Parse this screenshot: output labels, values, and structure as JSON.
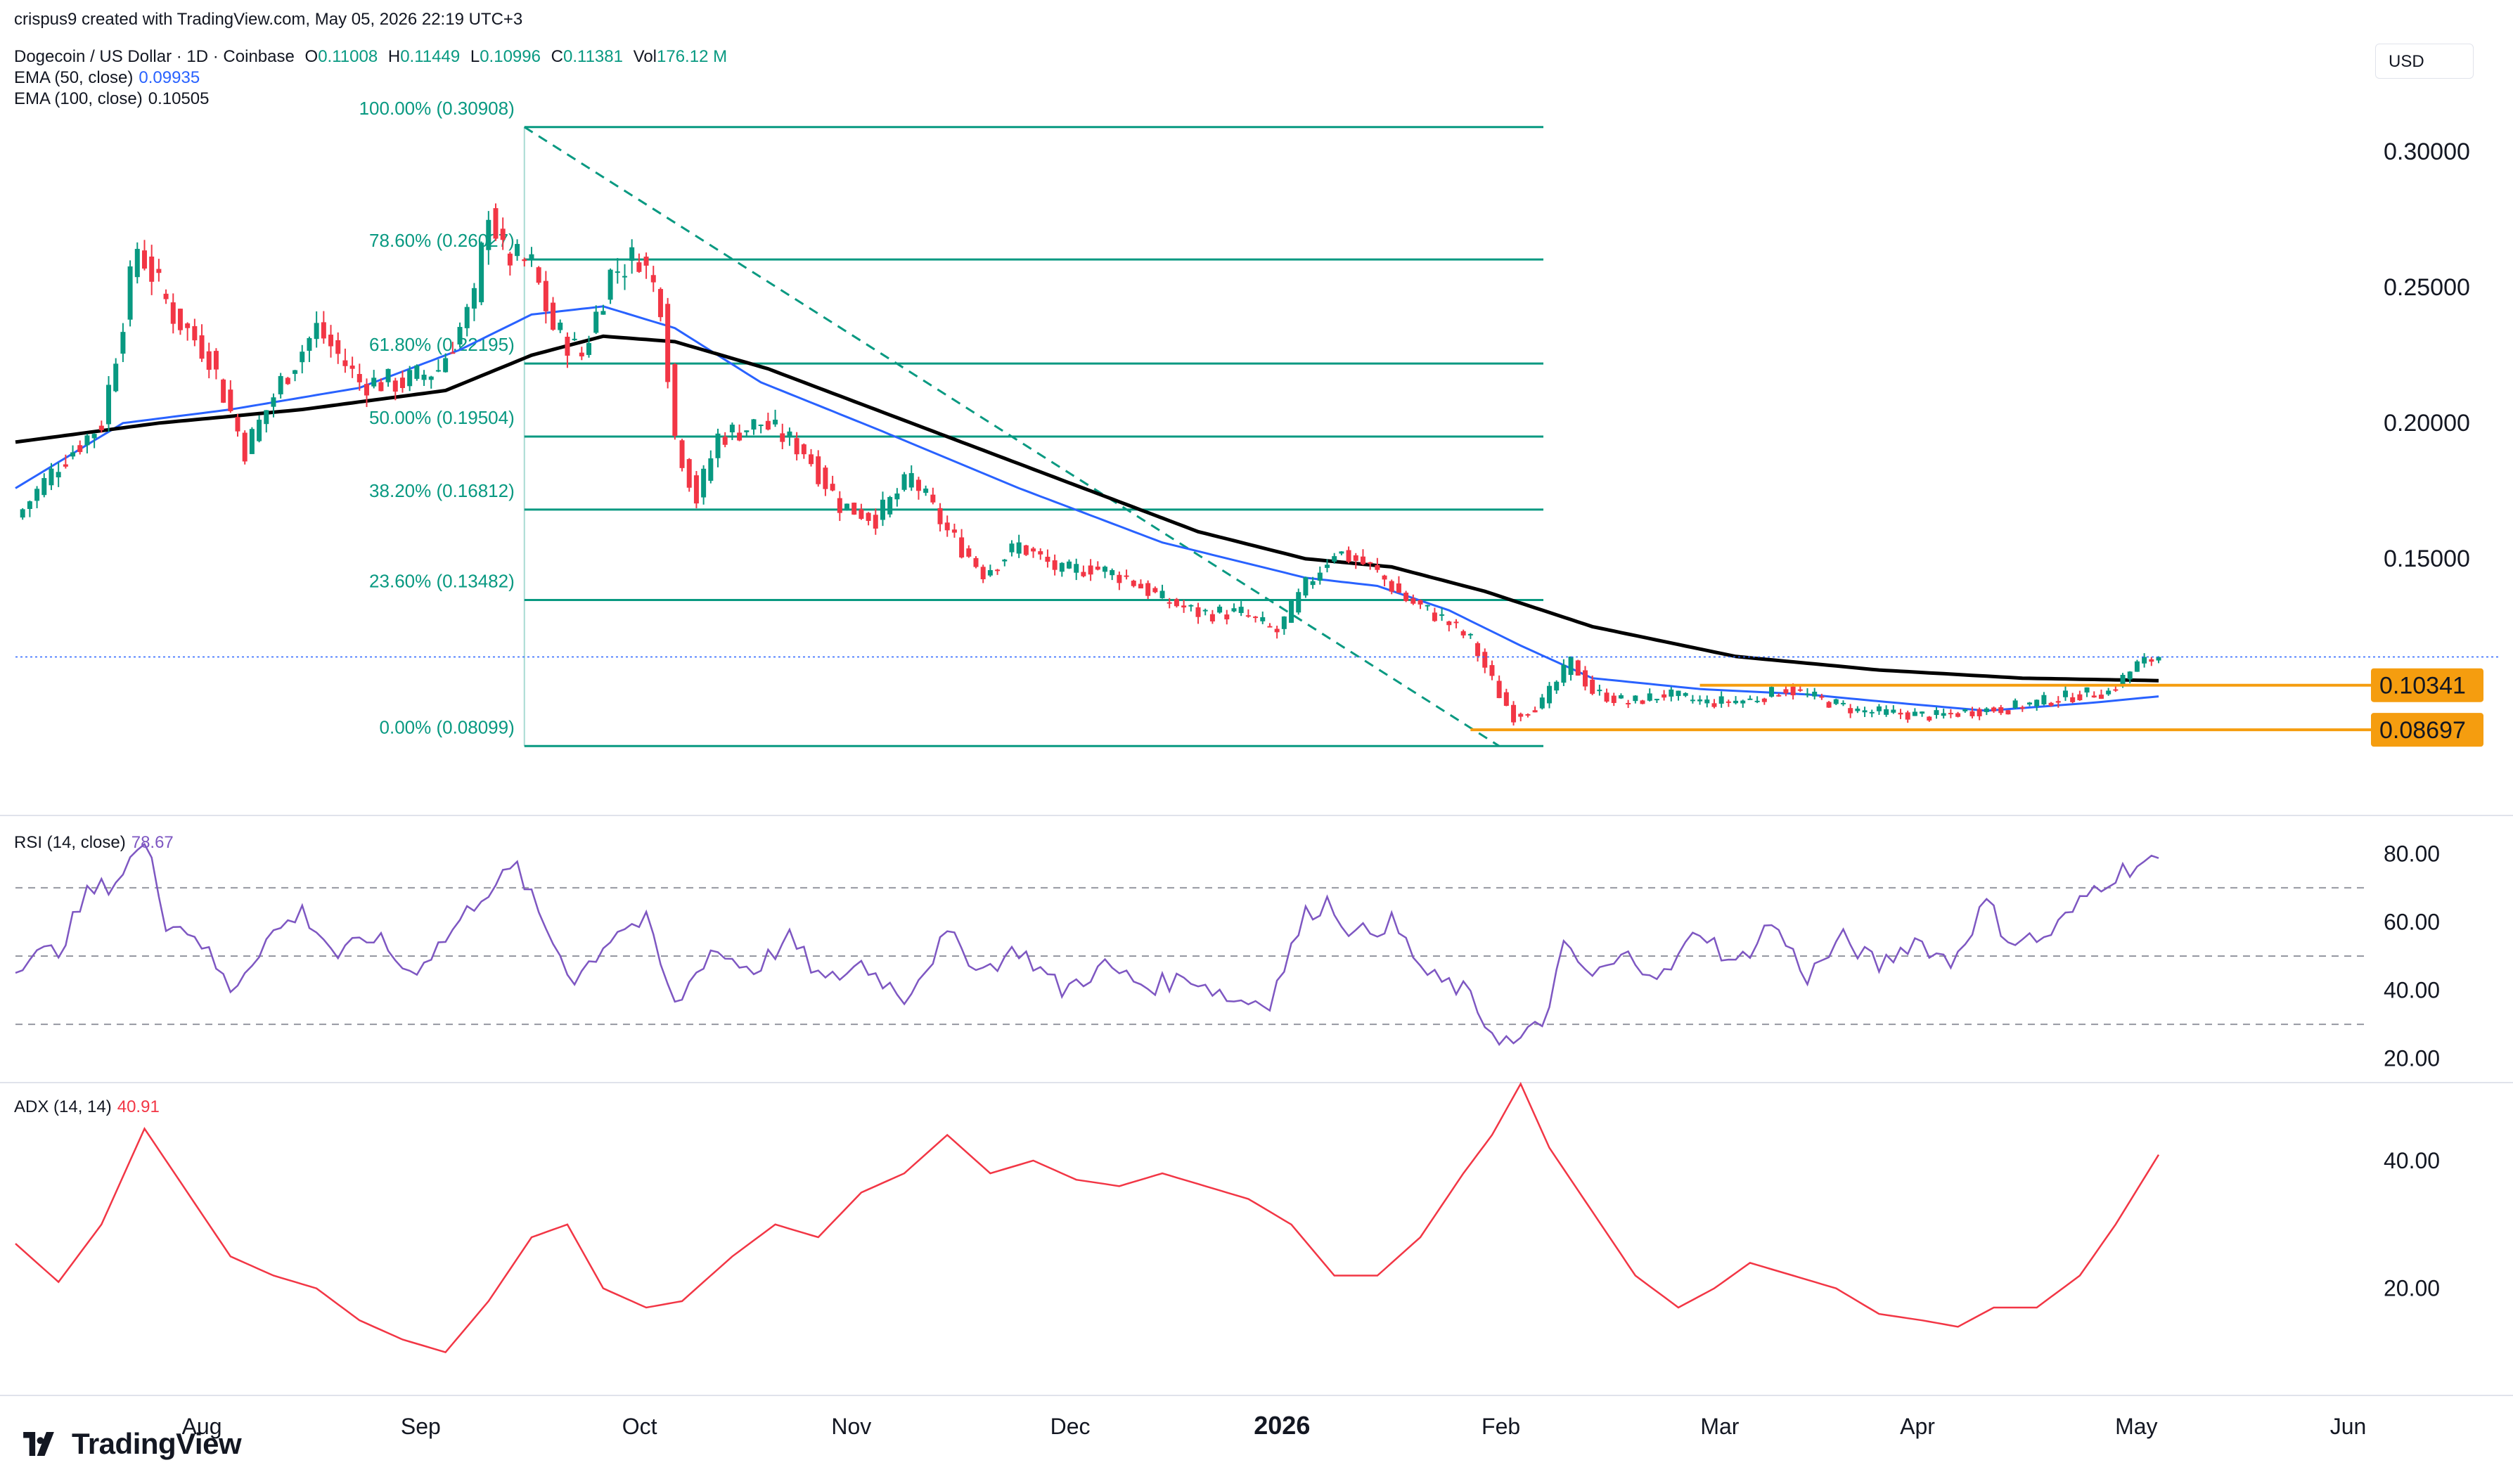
{
  "header": {
    "attribution": "crispus9 created with TradingView.com, May 05, 2026 22:19 UTC+3",
    "currency_button": "USD",
    "brand": "TradingView"
  },
  "legend": {
    "symbol": "Dogecoin / US Dollar · 1D · Coinbase",
    "ohlc": {
      "o_label": "O",
      "o": "0.11008",
      "h_label": "H",
      "h": "0.11449",
      "l_label": "L",
      "l": "0.10996",
      "c_label": "C",
      "c": "0.11381",
      "vol_label": "Vol",
      "vol": "176.12 M"
    },
    "ema50_label": "EMA (50, close)",
    "ema50_value": "0.09935",
    "ema100_label": "EMA (100, close)",
    "ema100_value": "0.10505",
    "rsi_label": "RSI (14, close)",
    "rsi_value": "78.67",
    "adx_label": "ADX (14, 14)",
    "adx_value": "40.91"
  },
  "colors": {
    "up": "#089981",
    "down": "#f23645",
    "ema50": "#2962ff",
    "ema100": "#000000",
    "fib": "#089981",
    "support": "#f59d0f",
    "rsi": "#7e57c2",
    "adx": "#f23645",
    "grid": "#f0f3fa",
    "text": "#131722"
  },
  "chart_data": [
    {
      "type": "candlestick",
      "title": "Dogecoin / US Dollar · 1D · Coinbase",
      "ylabel": "USD",
      "x_ticks": [
        "Aug",
        "Sep",
        "Oct",
        "Nov",
        "Dec",
        "2026",
        "Feb",
        "Mar",
        "Apr",
        "May",
        "Jun"
      ],
      "y_ticks": [
        "0.15000",
        "0.20000",
        "0.25000",
        "0.30000"
      ],
      "ylim": [
        0.058,
        0.33
      ],
      "last_close": 0.11381,
      "price_path": [
        [
          0,
          0.165
        ],
        [
          6,
          0.185
        ],
        [
          12,
          0.2
        ],
        [
          17,
          0.265
        ],
        [
          22,
          0.24
        ],
        [
          27,
          0.225
        ],
        [
          32,
          0.19
        ],
        [
          37,
          0.215
        ],
        [
          42,
          0.235
        ],
        [
          48,
          0.215
        ],
        [
          54,
          0.215
        ],
        [
          59,
          0.22
        ],
        [
          64,
          0.245
        ],
        [
          66,
          0.28
        ],
        [
          68,
          0.262
        ],
        [
          72,
          0.258
        ],
        [
          75,
          0.235
        ],
        [
          79,
          0.225
        ],
        [
          83,
          0.255
        ],
        [
          87,
          0.262
        ],
        [
          90,
          0.245
        ],
        [
          92,
          0.195
        ],
        [
          95,
          0.172
        ],
        [
          98,
          0.195
        ],
        [
          104,
          0.2
        ],
        [
          110,
          0.19
        ],
        [
          115,
          0.17
        ],
        [
          120,
          0.165
        ],
        [
          125,
          0.18
        ],
        [
          130,
          0.16
        ],
        [
          135,
          0.145
        ],
        [
          140,
          0.155
        ],
        [
          146,
          0.145
        ],
        [
          150,
          0.147
        ],
        [
          155,
          0.143
        ],
        [
          160,
          0.135
        ],
        [
          165,
          0.13
        ],
        [
          171,
          0.13
        ],
        [
          176,
          0.123
        ],
        [
          180,
          0.14
        ],
        [
          184,
          0.153
        ],
        [
          189,
          0.147
        ],
        [
          194,
          0.135
        ],
        [
          199,
          0.128
        ],
        [
          203,
          0.12
        ],
        [
          207,
          0.1
        ],
        [
          209,
          0.092
        ],
        [
          213,
          0.097
        ],
        [
          217,
          0.112
        ],
        [
          220,
          0.101
        ],
        [
          225,
          0.097
        ],
        [
          230,
          0.1
        ],
        [
          236,
          0.097
        ],
        [
          242,
          0.098
        ],
        [
          247,
          0.102
        ],
        [
          252,
          0.098
        ],
        [
          257,
          0.094
        ],
        [
          262,
          0.093
        ],
        [
          268,
          0.092
        ],
        [
          273,
          0.094
        ],
        [
          278,
          0.095
        ],
        [
          284,
          0.098
        ],
        [
          288,
          0.1
        ],
        [
          292,
          0.101
        ],
        [
          296,
          0.111
        ],
        [
          299,
          0.1138
        ]
      ],
      "ema50_path": [
        [
          0,
          0.176
        ],
        [
          15,
          0.2
        ],
        [
          30,
          0.205
        ],
        [
          48,
          0.213
        ],
        [
          62,
          0.227
        ],
        [
          72,
          0.24
        ],
        [
          82,
          0.243
        ],
        [
          92,
          0.235
        ],
        [
          104,
          0.215
        ],
        [
          120,
          0.198
        ],
        [
          140,
          0.176
        ],
        [
          160,
          0.156
        ],
        [
          180,
          0.143
        ],
        [
          190,
          0.14
        ],
        [
          200,
          0.131
        ],
        [
          210,
          0.118
        ],
        [
          220,
          0.106
        ],
        [
          235,
          0.102
        ],
        [
          250,
          0.1
        ],
        [
          262,
          0.097
        ],
        [
          275,
          0.094
        ],
        [
          290,
          0.097
        ],
        [
          299,
          0.0993
        ]
      ],
      "ema100_path": [
        [
          0,
          0.193
        ],
        [
          20,
          0.2
        ],
        [
          40,
          0.205
        ],
        [
          60,
          0.212
        ],
        [
          72,
          0.225
        ],
        [
          82,
          0.232
        ],
        [
          92,
          0.23
        ],
        [
          105,
          0.22
        ],
        [
          125,
          0.2
        ],
        [
          145,
          0.18
        ],
        [
          165,
          0.16
        ],
        [
          180,
          0.15
        ],
        [
          192,
          0.147
        ],
        [
          205,
          0.138
        ],
        [
          220,
          0.125
        ],
        [
          240,
          0.114
        ],
        [
          260,
          0.109
        ],
        [
          280,
          0.106
        ],
        [
          299,
          0.1051
        ]
      ],
      "fibonacci": [
        {
          "level": "100.00%",
          "price": 0.30908,
          "label": "100.00% (0.30908)"
        },
        {
          "level": "78.60%",
          "price": 0.26027,
          "label": "78.60% (0.26027)"
        },
        {
          "level": "61.80%",
          "price": 0.22195,
          "label": "61.80% (0.22195)"
        },
        {
          "level": "50.00%",
          "price": 0.19504,
          "label": "50.00% (0.19504)"
        },
        {
          "level": "38.20%",
          "price": 0.16812,
          "label": "38.20% (0.16812)"
        },
        {
          "level": "23.60%",
          "price": 0.13482,
          "label": "23.60% (0.13482)"
        },
        {
          "level": "0.00%",
          "price": 0.08099,
          "label": "0.00% (0.08099)"
        }
      ],
      "fib_trend": {
        "from": [
          71,
          0.30908
        ],
        "to": [
          207,
          0.08099
        ]
      },
      "horizontal_levels": [
        {
          "price": 0.10341,
          "label": "0.10341",
          "from_day": 235
        },
        {
          "price": 0.08697,
          "label": "0.08697",
          "from_day": 203
        }
      ],
      "annotations": [
        "0.10341",
        "0.08697"
      ]
    },
    {
      "type": "line",
      "title": "RSI (14, close)",
      "y_ticks": [
        "20.00",
        "40.00",
        "60.00",
        "80.00"
      ],
      "ylim": [
        15,
        85
      ],
      "bands": [
        30,
        50,
        70
      ],
      "values": [
        [
          0,
          48
        ],
        [
          6,
          52
        ],
        [
          10,
          68
        ],
        [
          14,
          72
        ],
        [
          17,
          81
        ],
        [
          19,
          80
        ],
        [
          21,
          60
        ],
        [
          25,
          57
        ],
        [
          30,
          40
        ],
        [
          35,
          55
        ],
        [
          40,
          63
        ],
        [
          45,
          50
        ],
        [
          50,
          56
        ],
        [
          55,
          45
        ],
        [
          60,
          55
        ],
        [
          65,
          68
        ],
        [
          70,
          76
        ],
        [
          73,
          62
        ],
        [
          78,
          43
        ],
        [
          84,
          58
        ],
        [
          88,
          60
        ],
        [
          92,
          35
        ],
        [
          97,
          52
        ],
        [
          103,
          46
        ],
        [
          108,
          55
        ],
        [
          113,
          42
        ],
        [
          118,
          48
        ],
        [
          124,
          38
        ],
        [
          130,
          56
        ],
        [
          135,
          46
        ],
        [
          140,
          52
        ],
        [
          146,
          40
        ],
        [
          152,
          47
        ],
        [
          158,
          41
        ],
        [
          164,
          44
        ],
        [
          170,
          37
        ],
        [
          175,
          37
        ],
        [
          180,
          62
        ],
        [
          183,
          66
        ],
        [
          187,
          56
        ],
        [
          192,
          60
        ],
        [
          197,
          44
        ],
        [
          202,
          40
        ],
        [
          206,
          28
        ],
        [
          209,
          24
        ],
        [
          213,
          30
        ],
        [
          216,
          52
        ],
        [
          220,
          44
        ],
        [
          225,
          50
        ],
        [
          230,
          44
        ],
        [
          235,
          58
        ],
        [
          240,
          47
        ],
        [
          245,
          60
        ],
        [
          250,
          44
        ],
        [
          255,
          55
        ],
        [
          260,
          47
        ],
        [
          265,
          55
        ],
        [
          270,
          48
        ],
        [
          275,
          66
        ],
        [
          278,
          55
        ],
        [
          283,
          55
        ],
        [
          287,
          63
        ],
        [
          290,
          70
        ],
        [
          293,
          74
        ],
        [
          296,
          77
        ],
        [
          299,
          78.67
        ]
      ]
    },
    {
      "type": "line",
      "title": "ADX (14, 14)",
      "y_ticks": [
        "20.00",
        "40.00"
      ],
      "ylim": [
        6,
        50
      ],
      "values": [
        [
          0,
          27
        ],
        [
          6,
          21
        ],
        [
          12,
          30
        ],
        [
          18,
          45
        ],
        [
          24,
          35
        ],
        [
          30,
          25
        ],
        [
          36,
          22
        ],
        [
          42,
          20
        ],
        [
          48,
          15
        ],
        [
          54,
          12
        ],
        [
          60,
          10
        ],
        [
          66,
          18
        ],
        [
          72,
          28
        ],
        [
          77,
          30
        ],
        [
          82,
          20
        ],
        [
          88,
          17
        ],
        [
          93,
          18
        ],
        [
          100,
          25
        ],
        [
          106,
          30
        ],
        [
          112,
          28
        ],
        [
          118,
          35
        ],
        [
          124,
          38
        ],
        [
          130,
          44
        ],
        [
          136,
          38
        ],
        [
          142,
          40
        ],
        [
          148,
          37
        ],
        [
          154,
          36
        ],
        [
          160,
          38
        ],
        [
          166,
          36
        ],
        [
          172,
          34
        ],
        [
          178,
          30
        ],
        [
          184,
          22
        ],
        [
          190,
          22
        ],
        [
          196,
          28
        ],
        [
          202,
          38
        ],
        [
          206,
          44
        ],
        [
          210,
          52
        ],
        [
          214,
          42
        ],
        [
          220,
          32
        ],
        [
          226,
          22
        ],
        [
          232,
          17
        ],
        [
          237,
          20
        ],
        [
          242,
          24
        ],
        [
          248,
          22
        ],
        [
          254,
          20
        ],
        [
          260,
          16
        ],
        [
          266,
          15
        ],
        [
          271,
          14
        ],
        [
          276,
          17
        ],
        [
          282,
          17
        ],
        [
          288,
          22
        ],
        [
          293,
          30
        ],
        [
          299,
          40.91
        ]
      ]
    }
  ]
}
